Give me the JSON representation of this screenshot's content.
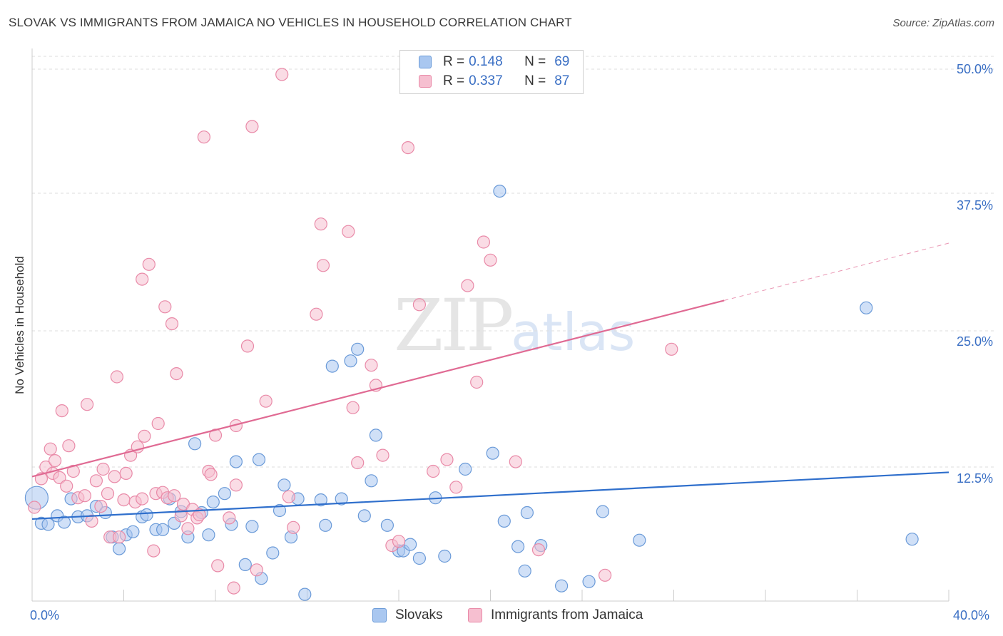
{
  "header": {
    "title": "SLOVAK VS IMMIGRANTS FROM JAMAICA NO VEHICLES IN HOUSEHOLD CORRELATION CHART",
    "source": "Source: ZipAtlas.com"
  },
  "watermark": {
    "zip": "ZIP",
    "atlas": "atlas"
  },
  "legend_top": {
    "rows": [
      {
        "r_label": "R =",
        "r_value": "0.148",
        "n_label": "N =",
        "n_value": "69"
      },
      {
        "r_label": "R =",
        "r_value": "0.337",
        "n_label": "N =",
        "n_value": "87"
      }
    ]
  },
  "legend_bottom": {
    "items": [
      {
        "label": "Slovaks"
      },
      {
        "label": "Immigrants from Jamaica"
      }
    ]
  },
  "axis": {
    "ylabel": "No Vehicles in Household",
    "x_min_label": "0.0%",
    "x_max_label": "40.0%",
    "y_ticks": [
      "50.0%",
      "37.5%",
      "25.0%",
      "12.5%"
    ]
  },
  "colors": {
    "slovaks_fill": "#a9c7f0",
    "slovaks_stroke": "#6a9ad8",
    "slovaks_line": "#2f6fcc",
    "jamaica_fill": "#f6bfd0",
    "jamaica_stroke": "#e98aa8",
    "jamaica_line": "#e06a93",
    "tick_text": "#3a6fc4",
    "grid": "#dddddd"
  },
  "chart_data": {
    "type": "scatter",
    "title": "SLOVAK VS IMMIGRANTS FROM JAMAICA NO VEHICLES IN HOUSEHOLD CORRELATION CHART",
    "xlabel": "",
    "ylabel": "No Vehicles in Household",
    "xlim": [
      0,
      40
    ],
    "ylim": [
      0,
      50
    ],
    "y_ticks": [
      12.5,
      25.0,
      37.5,
      50.0
    ],
    "grid": true,
    "legend": "top-center",
    "series": [
      {
        "name": "Slovaks",
        "R": 0.148,
        "N": 69,
        "trend": {
          "x": [
            0,
            40
          ],
          "y": [
            7.6,
            12.0
          ]
        },
        "points": [
          [
            0.2,
            9.6
          ],
          [
            0.4,
            7.2
          ],
          [
            0.7,
            7.1
          ],
          [
            1.1,
            7.9
          ],
          [
            1.4,
            7.3
          ],
          [
            1.7,
            9.5
          ],
          [
            2.0,
            7.8
          ],
          [
            2.4,
            7.9
          ],
          [
            2.8,
            8.8
          ],
          [
            3.2,
            8.2
          ],
          [
            3.5,
            5.9
          ],
          [
            3.8,
            4.8
          ],
          [
            4.1,
            6.1
          ],
          [
            4.4,
            6.4
          ],
          [
            4.8,
            7.8
          ],
          [
            5.0,
            8.0
          ],
          [
            5.4,
            6.6
          ],
          [
            5.7,
            6.6
          ],
          [
            6.0,
            9.5
          ],
          [
            6.2,
            7.2
          ],
          [
            6.5,
            8.3
          ],
          [
            6.8,
            5.9
          ],
          [
            7.1,
            14.7
          ],
          [
            7.4,
            8.2
          ],
          [
            7.7,
            6.1
          ],
          [
            7.9,
            9.2
          ],
          [
            8.4,
            10.0
          ],
          [
            8.7,
            7.1
          ],
          [
            8.9,
            13.0
          ],
          [
            9.3,
            3.3
          ],
          [
            9.6,
            6.9
          ],
          [
            9.9,
            13.2
          ],
          [
            10.0,
            2.0
          ],
          [
            10.5,
            4.4
          ],
          [
            10.8,
            8.4
          ],
          [
            11.0,
            10.8
          ],
          [
            11.3,
            5.9
          ],
          [
            11.6,
            9.5
          ],
          [
            11.9,
            0.5
          ],
          [
            12.6,
            9.4
          ],
          [
            12.8,
            7.0
          ],
          [
            13.1,
            22.0
          ],
          [
            13.5,
            9.5
          ],
          [
            13.9,
            22.5
          ],
          [
            14.2,
            23.6
          ],
          [
            14.5,
            7.9
          ],
          [
            14.8,
            11.2
          ],
          [
            15.5,
            7.0
          ],
          [
            15.0,
            15.5
          ],
          [
            16.0,
            4.6
          ],
          [
            16.2,
            4.6
          ],
          [
            16.5,
            5.2
          ],
          [
            16.9,
            3.9
          ],
          [
            17.6,
            9.6
          ],
          [
            18.0,
            4.1
          ],
          [
            18.9,
            12.3
          ],
          [
            20.1,
            13.8
          ],
          [
            20.4,
            38.5
          ],
          [
            20.6,
            7.4
          ],
          [
            21.2,
            5.0
          ],
          [
            21.5,
            2.7
          ],
          [
            21.6,
            8.2
          ],
          [
            22.2,
            5.1
          ],
          [
            23.1,
            1.3
          ],
          [
            24.3,
            1.7
          ],
          [
            24.9,
            8.3
          ],
          [
            26.5,
            5.6
          ],
          [
            36.4,
            27.5
          ],
          [
            38.4,
            5.7
          ]
        ]
      },
      {
        "name": "Immigrants from Jamaica",
        "R": 0.337,
        "N": 87,
        "trend": {
          "x": [
            0,
            30.2
          ],
          "y": [
            11.6,
            28.2
          ],
          "dashed_to": {
            "x": 40,
            "y": 33.6
          }
        },
        "points": [
          [
            0.1,
            8.7
          ],
          [
            0.4,
            11.4
          ],
          [
            0.6,
            12.5
          ],
          [
            0.8,
            14.2
          ],
          [
            0.9,
            11.9
          ],
          [
            1.0,
            13.1
          ],
          [
            1.2,
            11.5
          ],
          [
            1.3,
            17.8
          ],
          [
            1.5,
            10.7
          ],
          [
            1.6,
            14.5
          ],
          [
            1.8,
            12.1
          ],
          [
            2.0,
            9.6
          ],
          [
            2.3,
            9.8
          ],
          [
            2.4,
            18.4
          ],
          [
            2.6,
            7.4
          ],
          [
            2.8,
            11.2
          ],
          [
            3.0,
            8.8
          ],
          [
            3.1,
            12.3
          ],
          [
            3.3,
            10.0
          ],
          [
            3.4,
            5.9
          ],
          [
            3.6,
            11.6
          ],
          [
            3.7,
            21.0
          ],
          [
            3.8,
            5.9
          ],
          [
            4.0,
            9.4
          ],
          [
            4.1,
            11.9
          ],
          [
            4.3,
            13.6
          ],
          [
            4.5,
            9.2
          ],
          [
            4.6,
            14.4
          ],
          [
            4.8,
            9.5
          ],
          [
            4.8,
            30.2
          ],
          [
            4.9,
            15.4
          ],
          [
            5.1,
            31.6
          ],
          [
            5.3,
            4.6
          ],
          [
            5.4,
            10.0
          ],
          [
            5.5,
            16.6
          ],
          [
            5.7,
            10.1
          ],
          [
            5.8,
            27.6
          ],
          [
            5.9,
            9.6
          ],
          [
            6.1,
            26.0
          ],
          [
            6.2,
            9.8
          ],
          [
            6.3,
            21.3
          ],
          [
            6.5,
            7.9
          ],
          [
            6.6,
            9.0
          ],
          [
            6.8,
            6.7
          ],
          [
            7.0,
            8.5
          ],
          [
            7.2,
            7.7
          ],
          [
            7.3,
            8.0
          ],
          [
            7.5,
            43.6
          ],
          [
            7.7,
            12.1
          ],
          [
            7.8,
            11.8
          ],
          [
            8.0,
            15.5
          ],
          [
            8.1,
            3.2
          ],
          [
            8.6,
            7.7
          ],
          [
            8.8,
            1.1
          ],
          [
            8.9,
            10.8
          ],
          [
            8.9,
            16.4
          ],
          [
            9.4,
            23.9
          ],
          [
            9.6,
            44.6
          ],
          [
            9.8,
            2.8
          ],
          [
            10.2,
            18.7
          ],
          [
            10.9,
            49.5
          ],
          [
            11.2,
            9.7
          ],
          [
            11.4,
            6.8
          ],
          [
            12.4,
            26.9
          ],
          [
            12.6,
            35.4
          ],
          [
            12.7,
            31.5
          ],
          [
            13.8,
            34.7
          ],
          [
            14.0,
            18.1
          ],
          [
            14.2,
            12.9
          ],
          [
            14.8,
            22.1
          ],
          [
            15.0,
            20.2
          ],
          [
            15.3,
            13.6
          ],
          [
            15.7,
            5.1
          ],
          [
            16.0,
            5.5
          ],
          [
            16.4,
            42.6
          ],
          [
            16.9,
            27.8
          ],
          [
            17.5,
            12.1
          ],
          [
            18.1,
            13.2
          ],
          [
            18.5,
            10.6
          ],
          [
            19.0,
            29.6
          ],
          [
            19.4,
            20.5
          ],
          [
            19.7,
            33.7
          ],
          [
            20.0,
            32.0
          ],
          [
            21.1,
            13.0
          ],
          [
            22.1,
            4.7
          ],
          [
            25.0,
            2.3
          ],
          [
            27.9,
            23.6
          ]
        ]
      }
    ]
  }
}
